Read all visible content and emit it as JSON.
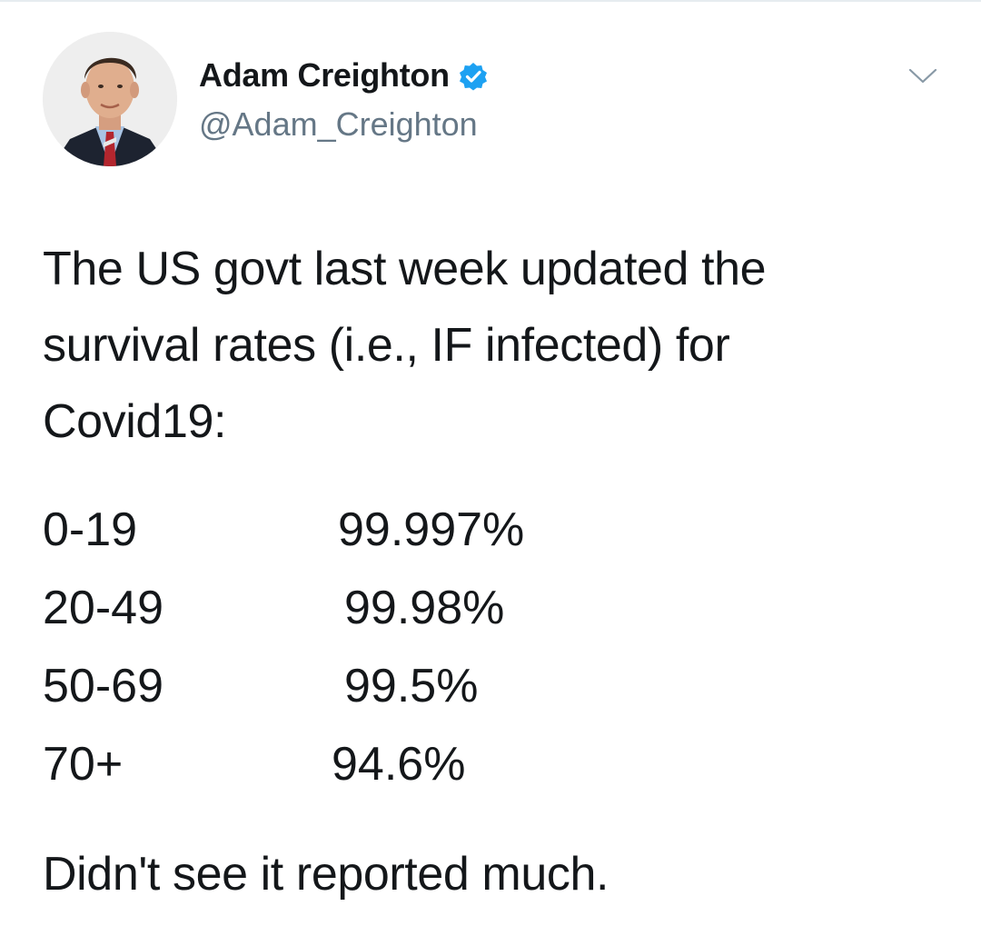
{
  "author": {
    "display_name": "Adam Creighton",
    "handle": "@Adam_Creighton",
    "verified_color": "#1da1f2"
  },
  "icons": {
    "verified": "verified-badge-icon",
    "menu": "chevron-down-icon"
  },
  "tweet": {
    "lines": [
      "The US govt last week updated the",
      "survival rates (i.e., IF infected) for",
      "Covid19:"
    ],
    "rates": [
      {
        "age": "0-19",
        "rate": "99.997%"
      },
      {
        "age": "20-49",
        "rate": "99.98%"
      },
      {
        "age": "50-69",
        "rate": "99.5%"
      },
      {
        "age": "70+",
        "rate": "94.6%"
      }
    ],
    "closing": "Didn't see it reported much."
  }
}
